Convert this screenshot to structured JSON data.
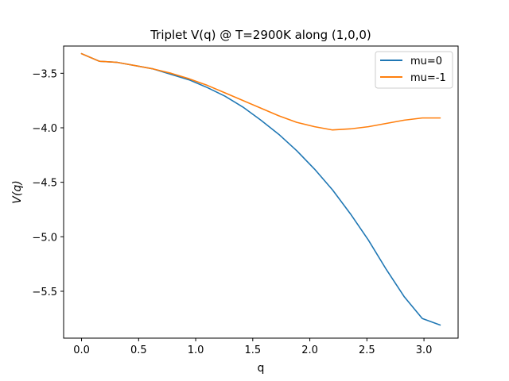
{
  "colors": {
    "mu0": "#1f77b4",
    "mu_1": "#ff7f0e",
    "axes": "#000000",
    "background": "#ffffff"
  },
  "chart_data": {
    "type": "line",
    "title": "Triplet V(q) @ T=2900K along (1,0,0)",
    "xlabel": "q",
    "ylabel": "V(q)",
    "xlim": [
      -0.157,
      3.299
    ],
    "ylim": [
      -5.93,
      -3.25
    ],
    "grid": false,
    "legend_position": "top-right",
    "x_ticks": [
      {
        "value": 0.0,
        "label": "0.0"
      },
      {
        "value": 0.5,
        "label": "0.5"
      },
      {
        "value": 1.0,
        "label": "1.0"
      },
      {
        "value": 1.5,
        "label": "1.5"
      },
      {
        "value": 2.0,
        "label": "2.0"
      },
      {
        "value": 2.5,
        "label": "2.5"
      },
      {
        "value": 3.0,
        "label": "3.0"
      }
    ],
    "y_ticks": [
      {
        "value": -3.5,
        "label": "−3.5"
      },
      {
        "value": -4.0,
        "label": "−4.0"
      },
      {
        "value": -4.5,
        "label": "−4.5"
      },
      {
        "value": -5.0,
        "label": "−5.0"
      },
      {
        "value": -5.5,
        "label": "−5.5"
      }
    ],
    "x": [
      0.0,
      0.157,
      0.314,
      0.471,
      0.628,
      0.785,
      0.942,
      1.1,
      1.257,
      1.414,
      1.571,
      1.728,
      1.885,
      2.042,
      2.199,
      2.356,
      2.513,
      2.67,
      2.827,
      2.985,
      3.142
    ],
    "series": [
      {
        "name": "mu=0",
        "color": "#1f77b4",
        "values": [
          -3.32,
          -3.39,
          -3.4,
          -3.43,
          -3.46,
          -3.51,
          -3.56,
          -3.63,
          -3.71,
          -3.81,
          -3.93,
          -4.06,
          -4.21,
          -4.38,
          -4.57,
          -4.79,
          -5.03,
          -5.3,
          -5.55,
          -5.75,
          -5.81
        ]
      },
      {
        "name": "mu=-1",
        "color": "#ff7f0e",
        "values": [
          -3.32,
          -3.39,
          -3.4,
          -3.43,
          -3.46,
          -3.5,
          -3.55,
          -3.61,
          -3.68,
          -3.75,
          -3.82,
          -3.89,
          -3.95,
          -3.99,
          -4.02,
          -4.01,
          -3.99,
          -3.96,
          -3.93,
          -3.91,
          -3.91
        ]
      }
    ]
  }
}
